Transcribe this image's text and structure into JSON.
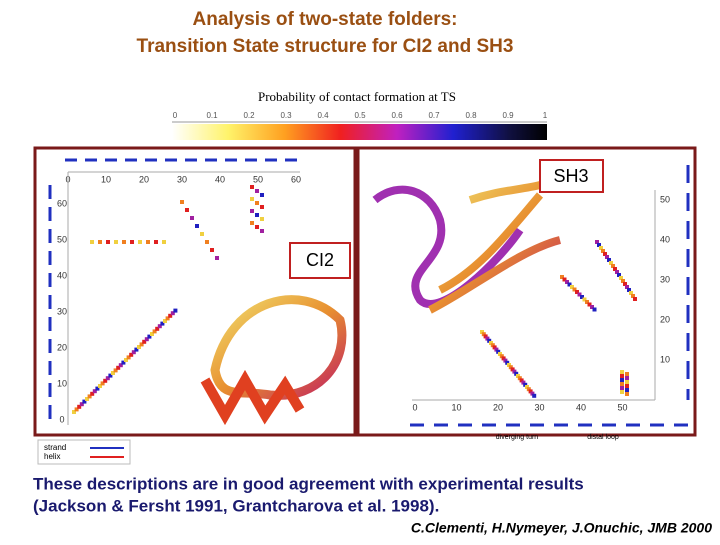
{
  "title": [
    "Analysis of two-state folders:",
    "Transition State structure for CI2 and SH3"
  ],
  "colorbar": {
    "label": "Probability of contact formation at TS",
    "ticks": [
      "0",
      "0.1",
      "0.2",
      "0.3",
      "0.4",
      "0.5",
      "0.6",
      "0.7",
      "0.8",
      "0.9",
      "1"
    ]
  },
  "panels": [
    {
      "label": "CI2",
      "x_ticks": [
        "0",
        "10",
        "20",
        "30",
        "40",
        "50",
        "60"
      ],
      "y_ticks": [
        "0",
        "10",
        "20",
        "30",
        "40",
        "50",
        "60"
      ],
      "legend": [
        "strand",
        "helix"
      ]
    },
    {
      "label": "SH3",
      "x_ticks": [
        "0",
        "10",
        "20",
        "30",
        "40",
        "50"
      ],
      "y_ticks": [
        "10",
        "20",
        "30",
        "40",
        "50"
      ],
      "annotations": [
        "diverging turn",
        "distal loop"
      ]
    }
  ],
  "body": [
    "These descriptions are in good agreement with experimental results",
    "(Jackson & Fersht 1991, Grantcharova et al. 1998)."
  ],
  "citation": "C.Clementi, H.Nymeyer, J.Onuchic, JMB 2000"
}
